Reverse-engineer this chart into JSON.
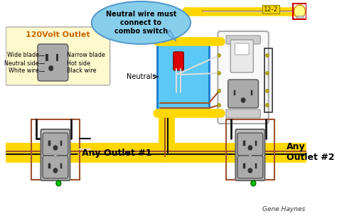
{
  "bg_color": "#ffffff",
  "yellow_wire_color": "#FFD700",
  "black_wire_color": "#111111",
  "white_wire_color": "#DDDDDD",
  "brown_wire_color": "#A0522D",
  "red_wire_color": "#DD0000",
  "outlet_gray": "#999999",
  "outlet_dark": "#777777",
  "box_blue": "#5BC8F5",
  "box_border": "#1A7ACC",
  "legend_bg": "#FFFACD",
  "switch_bg": "#F0F0F0",
  "bubble_bg": "#87CEEB",
  "title_text": "120Volt Outlet",
  "legend_labels_left": [
    "Wide blade",
    "Neutral side",
    "White wire"
  ],
  "legend_labels_right": [
    "Narrow blade",
    "Hot side",
    "Black wire"
  ],
  "bubble_text": "Neutral wire must\nconnect to\ncombo switch",
  "neutrals_text": "Neutrals",
  "label_12_2": "12-2",
  "outlet1_label": "Any Outlet #1",
  "outlet2_label": "Any\nOutlet #2",
  "credit": "Gene Haynes",
  "green_dot_color": "#00BB00"
}
